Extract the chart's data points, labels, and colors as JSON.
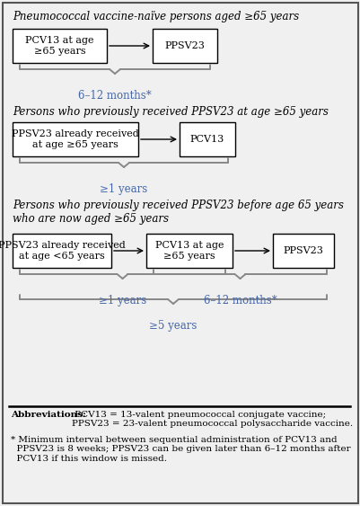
{
  "background_color": "#f0f0f0",
  "border_color": "#555555",
  "box_color": "#ffffff",
  "box_edge_color": "#000000",
  "arrow_color": "#000000",
  "brace_color": "#888888",
  "brace_label_color": "#4466aa",
  "title_color": "#000000",
  "section1_title": "Pneumococcal vaccine-naïve persons aged ≥65 years",
  "section2_title": "Persons who previously received PPSV23 at age ≥65 years",
  "section3_title": "Persons who previously received PPSV23 before age 65 years\nwho are now aged ≥65 years",
  "abbrev_bold": "Abbreviations:",
  "abbrev_rest": " PCV13 = 13-valent pneumococcal conjugate vaccine;\nPPSV23 = 23-valent pneumococcal polysaccharide vaccine.",
  "footnote": "* Minimum interval between sequential administration of PCV13 and\n  PPSV23 is 8 weeks; PPSV23 can be given later than 6–12 months after\n  PCV13 if this window is missed.",
  "sec1_box1": "PCV13 at age\n≥65 years",
  "sec1_box2": "PPSV23",
  "sec1_brace_label": "6–12 months*",
  "sec2_box1": "PPSV23 already received\nat age ≥65 years",
  "sec2_box2": "PCV13",
  "sec2_brace_label": "≥1 years",
  "sec3_box1": "PPSV23 already received\nat age <65 years",
  "sec3_box2": "PCV13 at age\n≥65 years",
  "sec3_box3": "PPSV23",
  "sec3_brace1_label": "≥1 years",
  "sec3_brace2_label": "6–12 months*",
  "sec3_brace3_label": "≥5 years"
}
